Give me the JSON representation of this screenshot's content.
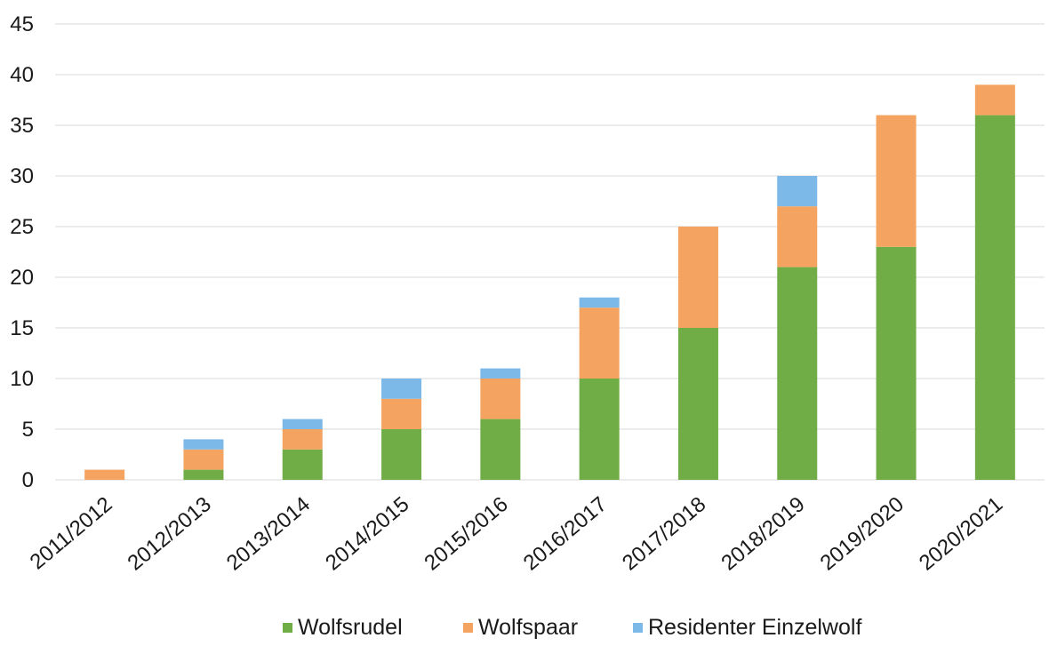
{
  "chart_data": {
    "type": "bar",
    "stacked": true,
    "title": "",
    "xlabel": "",
    "ylabel": "",
    "ylim": [
      0,
      45
    ],
    "yticks": [
      0,
      5,
      10,
      15,
      20,
      25,
      30,
      35,
      40,
      45
    ],
    "grid": true,
    "legend_position": "bottom",
    "categories": [
      "2011/2012",
      "2012/2013",
      "2013/2014",
      "2014/2015",
      "2015/2016",
      "2016/2017",
      "2017/2018",
      "2018/2019",
      "2019/2020",
      "2020/2021"
    ],
    "series": [
      {
        "name": "Wolfsrudel",
        "color": "#70ad47",
        "values": [
          0,
          1,
          3,
          5,
          6,
          10,
          15,
          21,
          23,
          36
        ]
      },
      {
        "name": "Wolfspaar",
        "color": "#f4a460",
        "values": [
          1,
          2,
          2,
          3,
          4,
          7,
          10,
          6,
          13,
          3
        ]
      },
      {
        "name": "Residenter Einzelwolf",
        "color": "#7cb9e8",
        "values": [
          0,
          1,
          1,
          2,
          1,
          1,
          0,
          3,
          0,
          0
        ]
      }
    ]
  }
}
